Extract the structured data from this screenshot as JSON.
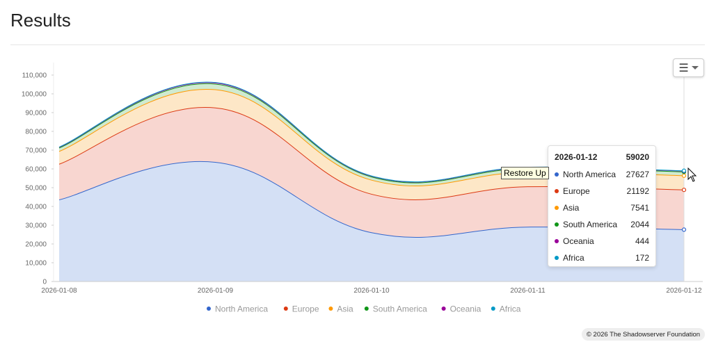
{
  "page": {
    "title": "Results"
  },
  "chart_data": {
    "type": "area",
    "stacked": true,
    "x": [
      "2026-01-08",
      "2026-01-09",
      "2026-01-10",
      "2026-01-11",
      "2026-01-12"
    ],
    "series": [
      {
        "name": "North America",
        "color": "#3366cc",
        "fill": "#d4e0f5",
        "values": [
          43500,
          63500,
          26000,
          29000,
          27627
        ]
      },
      {
        "name": "Europe",
        "color": "#dc3912",
        "fill": "#f8d6d0",
        "values": [
          19000,
          29000,
          20500,
          21500,
          21192
        ]
      },
      {
        "name": "Asia",
        "color": "#ff9900",
        "fill": "#fde7c7",
        "values": [
          6800,
          9700,
          7500,
          7800,
          7541
        ]
      },
      {
        "name": "South America",
        "color": "#109618",
        "fill": "#d0ead0",
        "values": [
          1800,
          3000,
          1700,
          2000,
          2044
        ]
      },
      {
        "name": "Oceania",
        "color": "#990099",
        "fill": "#ebcdeb",
        "values": [
          400,
          600,
          400,
          450,
          444
        ]
      },
      {
        "name": "Africa",
        "color": "#0099c6",
        "fill": "#cceaf3",
        "values": [
          150,
          250,
          150,
          170,
          172
        ]
      }
    ],
    "yticks": [
      0,
      10000,
      20000,
      30000,
      40000,
      50000,
      60000,
      70000,
      80000,
      90000,
      100000,
      110000
    ],
    "ytick_labels": [
      "0",
      "10,000",
      "20,000",
      "30,000",
      "40,000",
      "50,000",
      "60,000",
      "70,000",
      "80,000",
      "90,000",
      "100,000",
      "110,000"
    ],
    "ylim": [
      0,
      110000
    ],
    "legend_position": "bottom-center",
    "grid": false
  },
  "tooltip": {
    "date": "2026-01-12",
    "total": "59020",
    "rows": [
      {
        "name": "North America",
        "value": "27627",
        "color": "#3366cc"
      },
      {
        "name": "Europe",
        "value": "21192",
        "color": "#dc3912"
      },
      {
        "name": "Asia",
        "value": "7541",
        "color": "#ff9900"
      },
      {
        "name": "South America",
        "value": "2044",
        "color": "#109618"
      },
      {
        "name": "Oceania",
        "value": "444",
        "color": "#990099"
      },
      {
        "name": "Africa",
        "value": "172",
        "color": "#0099c6"
      }
    ]
  },
  "restore_tooltip": "Restore Up",
  "menu": {
    "icon": "☰"
  },
  "credit": "© 2026 The Shadowserver Foundation"
}
